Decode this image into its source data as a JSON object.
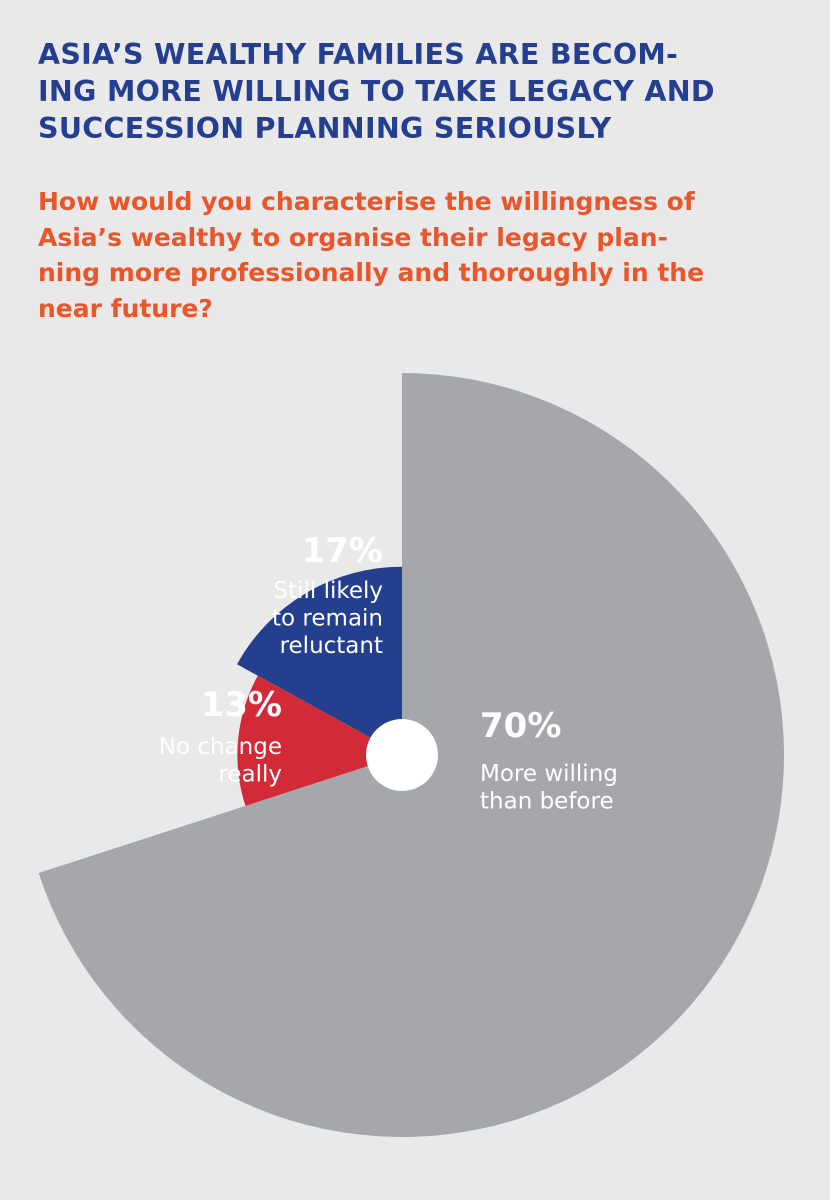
{
  "title_lines": [
    "ASIA’S WEALTHY FAMILIES ARE BECOM-",
    "ING MORE WILLING TO TAKE LEGACY AND",
    "SUCCESSION PLANNING SERIOUSLY"
  ],
  "question_lines": [
    "How would you characterise the willingness of",
    "Asia’s wealthy to organise their legacy plan-",
    "ning more professionally and thoroughly in the",
    "near future?"
  ],
  "chart_data": {
    "type": "pie",
    "variant": "radial-length",
    "start": "12 o'clock",
    "direction": "clockwise",
    "slices": [
      {
        "value": 70,
        "label": "70%",
        "text": [
          "More willing",
          "than before"
        ],
        "color": "#a6a7ab"
      },
      {
        "value": 13,
        "label": "13%",
        "text": [
          "No change",
          "really"
        ],
        "color": "#d22b37"
      },
      {
        "value": 17,
        "label": "17%",
        "text": [
          "Still likely",
          "to remain",
          "reluctant"
        ],
        "color": "#233f8e"
      }
    ],
    "center_hole_color": "#ffffff"
  }
}
